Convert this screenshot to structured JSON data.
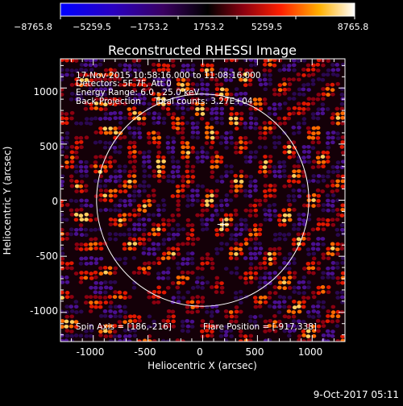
{
  "chart_data": {
    "type": "heatmap",
    "title": "Reconstructed RHESSI Image",
    "xlabel": "Heliocentric X (arcsec)",
    "ylabel": "Heliocentric Y (arcsec)",
    "xlim": [
      -1300,
      1300
    ],
    "ylim": [
      -1260,
      1260
    ],
    "x_ticks": [
      -1000,
      -500,
      0,
      500,
      1000
    ],
    "y_ticks": [
      -1000,
      -500,
      0,
      500,
      1000
    ],
    "colorbar": {
      "min": -8765.8,
      "max": 8765.8,
      "tick_values": [
        -8765.8,
        -5259.5,
        -1753.2,
        1753.2,
        5259.5,
        8765.8
      ],
      "tick_labels": [
        "−8765.8",
        "−5259.5",
        "−1753.2",
        "1753.2",
        "5259.5",
        "8765.8"
      ]
    },
    "annotations": [
      "17-Nov-2015 10:58:16.000 to 11:08:16.000",
      "Detectors: 5F 7F, Att 0",
      "Energy Range: 6.0 - 25.0 keV",
      "Back Projection     Total counts: 3.27E+04"
    ],
    "spin_axis": "Spin Axis = [186,-216]",
    "flare_position_label": "Flare Position = [-917,338]",
    "solar_limb_radius_arcsec": 970,
    "map_center_marker": [
      186,
      -216
    ],
    "grid": false
  },
  "timestamp": "9-Oct-2017 05:11",
  "colors": {
    "background": "#000000",
    "foreground": "#ffffff"
  }
}
